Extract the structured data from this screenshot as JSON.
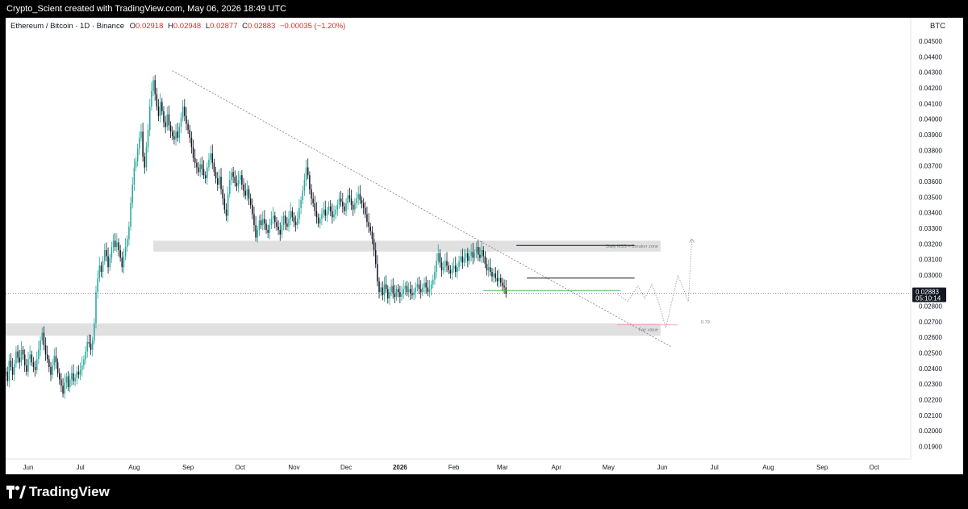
{
  "header": {
    "credit": "Crypto_Scient created with TradingView.com, May 06, 2026 18:49 UTC"
  },
  "legend": {
    "symbol": "Ethereum / Bitcoin · 1D · Binance",
    "open_key": "O",
    "open": "0.02918",
    "high_key": "H",
    "high": "0.02948",
    "low_key": "L",
    "low": "0.02877",
    "close_key": "C",
    "close": "0.02883",
    "change": "−0.00035 (−1.20%)"
  },
  "currency": "BTC",
  "price_tag": {
    "price": "0.02883",
    "countdown": "05:10:14"
  },
  "brand": {
    "name": "TradingView"
  },
  "colors": {
    "up": "#26a69a",
    "down": "#131722",
    "zone": "#e0e0e0",
    "trendline": "#787b86",
    "fib_line": "#f48fb1",
    "green_line": "#4caf50"
  },
  "chart_data": {
    "type": "candlestick",
    "title": "",
    "symbol": "Ethereum / Bitcoin",
    "interval": "1D",
    "exchange": "Binance",
    "y_unit": "BTC",
    "ylim": [
      0.0182,
      0.0465
    ],
    "y_ticks": [
      "0.04500",
      "0.04400",
      "0.04300",
      "0.04200",
      "0.04100",
      "0.04000",
      "0.03900",
      "0.03800",
      "0.03700",
      "0.03600",
      "0.03500",
      "0.03400",
      "0.03300",
      "0.03200",
      "0.03100",
      "0.03000",
      "0.02900",
      "0.02800",
      "0.02700",
      "0.02600",
      "0.02500",
      "0.02400",
      "0.02300",
      "0.02200",
      "0.02100",
      "0.02000",
      "0.01900"
    ],
    "x_range": [
      "2025-05-19",
      "2026-10-22"
    ],
    "x_ticks": [
      {
        "date": "2025-06-01",
        "label": "Jun"
      },
      {
        "date": "2025-07-01",
        "label": "Jul"
      },
      {
        "date": "2025-08-01",
        "label": "Aug"
      },
      {
        "date": "2025-09-01",
        "label": "Sep"
      },
      {
        "date": "2025-10-01",
        "label": "Oct"
      },
      {
        "date": "2025-11-01",
        "label": "Nov"
      },
      {
        "date": "2025-12-01",
        "label": "Dec"
      },
      {
        "date": "2026-01-01",
        "label": "2026",
        "bold": true
      },
      {
        "date": "2026-02-01",
        "label": "Feb"
      },
      {
        "date": "2026-03-01",
        "label": "Mar"
      },
      {
        "date": "2026-04-01",
        "label": "Apr"
      },
      {
        "date": "2026-05-01",
        "label": "May"
      },
      {
        "date": "2026-06-01",
        "label": "Jun"
      },
      {
        "date": "2026-07-01",
        "label": "Jul"
      },
      {
        "date": "2026-08-01",
        "label": "Aug"
      },
      {
        "date": "2026-09-01",
        "label": "Sep"
      },
      {
        "date": "2026-10-01",
        "label": "Oct"
      }
    ],
    "series_start": "2025-05-19",
    "closes": [
      0.0238,
      0.0232,
      0.0245,
      0.0241,
      0.0236,
      0.0243,
      0.0251,
      0.0247,
      0.0244,
      0.0252,
      0.0249,
      0.0242,
      0.0238,
      0.0246,
      0.0249,
      0.0244,
      0.0241,
      0.0239,
      0.0246,
      0.0252,
      0.0258,
      0.0263,
      0.0255,
      0.0249,
      0.0246,
      0.0241,
      0.0236,
      0.0242,
      0.0248,
      0.0244,
      0.0237,
      0.0233,
      0.0229,
      0.0224,
      0.0231,
      0.0235,
      0.0228,
      0.0233,
      0.0237,
      0.0232,
      0.0234,
      0.0238,
      0.0236,
      0.0239,
      0.0242,
      0.0246,
      0.0251,
      0.0257,
      0.0256,
      0.0252,
      0.0258,
      0.0269,
      0.0289,
      0.0298,
      0.0306,
      0.0302,
      0.0309,
      0.0316,
      0.0312,
      0.0305,
      0.0311,
      0.0318,
      0.0322,
      0.0318,
      0.0321,
      0.0316,
      0.0311,
      0.0305,
      0.0312,
      0.0318,
      0.0323,
      0.0331,
      0.0346,
      0.0358,
      0.0369,
      0.0373,
      0.0381,
      0.0388,
      0.0392,
      0.0376,
      0.0369,
      0.0382,
      0.0393,
      0.0408,
      0.0418,
      0.0425,
      0.0416,
      0.0408,
      0.0402,
      0.0411,
      0.0405,
      0.0398,
      0.0395,
      0.0403,
      0.0396,
      0.0392,
      0.0389,
      0.0387,
      0.0392,
      0.0388,
      0.0395,
      0.0401,
      0.0408,
      0.0402,
      0.0397,
      0.0393,
      0.0388,
      0.0382,
      0.0375,
      0.0372,
      0.0369,
      0.0366,
      0.0371,
      0.0368,
      0.0364,
      0.0362,
      0.0369,
      0.0374,
      0.0378,
      0.0372,
      0.0366,
      0.0362,
      0.0358,
      0.0363,
      0.0355,
      0.0349,
      0.0342,
      0.0338,
      0.0352,
      0.0361,
      0.0366,
      0.0363,
      0.0359,
      0.0357,
      0.0361,
      0.0364,
      0.0358,
      0.0354,
      0.0351,
      0.0355,
      0.0349,
      0.0345,
      0.0339,
      0.0332,
      0.0324,
      0.0329,
      0.0335,
      0.0332,
      0.0336,
      0.0333,
      0.0329,
      0.0327,
      0.0332,
      0.0336,
      0.0338,
      0.0334,
      0.0331,
      0.0329,
      0.0326,
      0.0332,
      0.0338,
      0.0333,
      0.0331,
      0.0336,
      0.0341,
      0.0337,
      0.0334,
      0.0332,
      0.0336,
      0.0343,
      0.0348,
      0.0354,
      0.0361,
      0.0369,
      0.0364,
      0.0355,
      0.0349,
      0.0346,
      0.0341,
      0.0337,
      0.0333,
      0.0336,
      0.0339,
      0.0342,
      0.0338,
      0.0341,
      0.0344,
      0.0341,
      0.0337,
      0.0339,
      0.0342,
      0.0345,
      0.0349,
      0.0347,
      0.0344,
      0.0341,
      0.0346,
      0.0351,
      0.0349,
      0.0345,
      0.0342,
      0.0346,
      0.0349,
      0.0352,
      0.0348,
      0.0346,
      0.0343,
      0.0339,
      0.0334,
      0.0331,
      0.0328,
      0.0323,
      0.0316,
      0.0307,
      0.0296,
      0.0289,
      0.0292,
      0.0287,
      0.0294,
      0.0291,
      0.0285,
      0.0289,
      0.0293,
      0.0288,
      0.0286,
      0.0291,
      0.0289,
      0.0286,
      0.0288,
      0.0291,
      0.0293,
      0.0289,
      0.0291,
      0.0288,
      0.0287,
      0.0289,
      0.0292,
      0.0294,
      0.0291,
      0.0289,
      0.0292,
      0.0295,
      0.0292,
      0.0289,
      0.0291,
      0.0294,
      0.0297,
      0.0302,
      0.0309,
      0.0314,
      0.0308,
      0.0303,
      0.0305,
      0.0309,
      0.0306,
      0.0303,
      0.0301,
      0.0304,
      0.0306,
      0.0302,
      0.0305,
      0.0309,
      0.0312,
      0.0308,
      0.0311,
      0.0314,
      0.0309,
      0.0312,
      0.0315,
      0.0311,
      0.0314,
      0.0318,
      0.0313,
      0.0311,
      0.0316,
      0.0312,
      0.0307,
      0.0303,
      0.0305,
      0.0302,
      0.0299,
      0.0301,
      0.0298,
      0.0296,
      0.0298,
      0.0295,
      0.0293,
      0.0292,
      0.0288
    ],
    "annotations": [
      {
        "type": "zone",
        "price_range": [
          0.0315,
          0.0322
        ],
        "date_range": [
          "2025-08-12",
          "2026-05-31"
        ],
        "label": "Daily MSS + Breaker zone"
      },
      {
        "type": "zone",
        "price_range": [
          0.0261,
          0.0269
        ],
        "date_range": [
          "2025-05-19",
          "2026-05-31"
        ],
        "label": "Fair value"
      },
      {
        "type": "trendline",
        "from": {
          "date": "2025-08-23",
          "price": 0.0431
        },
        "to": {
          "date": "2026-06-06",
          "price": 0.0254
        }
      },
      {
        "type": "hline",
        "price": 0.0319,
        "date_range": [
          "2026-03-09",
          "2026-05-16"
        ]
      },
      {
        "type": "hline",
        "price": 0.0298,
        "date_range": [
          "2026-03-15",
          "2026-05-16"
        ]
      },
      {
        "type": "hline",
        "price": 0.029,
        "date_range": [
          "2026-02-18",
          "2026-05-08"
        ]
      },
      {
        "type": "hline",
        "price": 0.0268,
        "date_range": [
          "2026-05-06",
          "2026-06-10"
        ],
        "label": "0.79"
      },
      {
        "type": "projection",
        "points": [
          [
            "2026-05-06",
            0.0288
          ],
          [
            "2026-05-12",
            0.0283
          ],
          [
            "2026-05-18",
            0.0293
          ],
          [
            "2026-05-22",
            0.0285
          ],
          [
            "2026-05-26",
            0.0294
          ],
          [
            "2026-05-30",
            0.0282
          ],
          [
            "2026-06-03",
            0.0266
          ],
          [
            "2026-06-10",
            0.03
          ],
          [
            "2026-06-16",
            0.0283
          ],
          [
            "2026-06-18",
            0.0323
          ]
        ]
      }
    ]
  }
}
